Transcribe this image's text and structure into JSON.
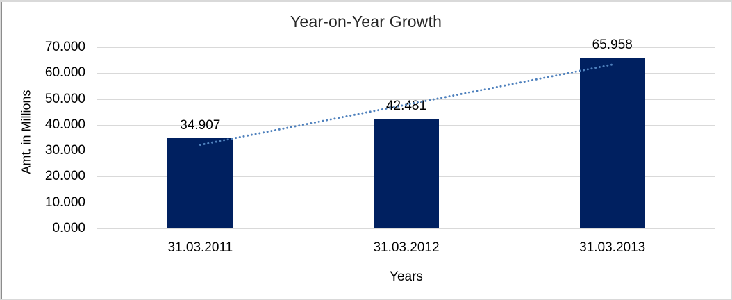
{
  "chart_data": {
    "type": "bar",
    "title": "Year-on-Year Growth",
    "xlabel": "Years",
    "ylabel": "Amt. in Millions",
    "categories": [
      "31.03.2011",
      "31.03.2012",
      "31.03.2013"
    ],
    "values": [
      34.907,
      42.481,
      65.958
    ],
    "data_labels": [
      "34.907",
      "42.481",
      "65.958"
    ],
    "ylim": [
      0,
      70
    ],
    "ytick_interval": 10,
    "ytick_labels": [
      "0.000",
      "10.000",
      "20.000",
      "30.000",
      "40.000",
      "50.000",
      "60.000",
      "70.000"
    ],
    "grid": "horizontal",
    "legend": "none",
    "trendline": {
      "type": "linear",
      "style": "dotted",
      "from_value": 32.3,
      "to_value": 63.3
    },
    "colors": {
      "bar": "#002060",
      "trendline": "#4F81BD",
      "gridline": "#D9D9D9",
      "frame_border": "#D9D9D9",
      "text": "#000000",
      "background": "#FFFFFF"
    }
  }
}
